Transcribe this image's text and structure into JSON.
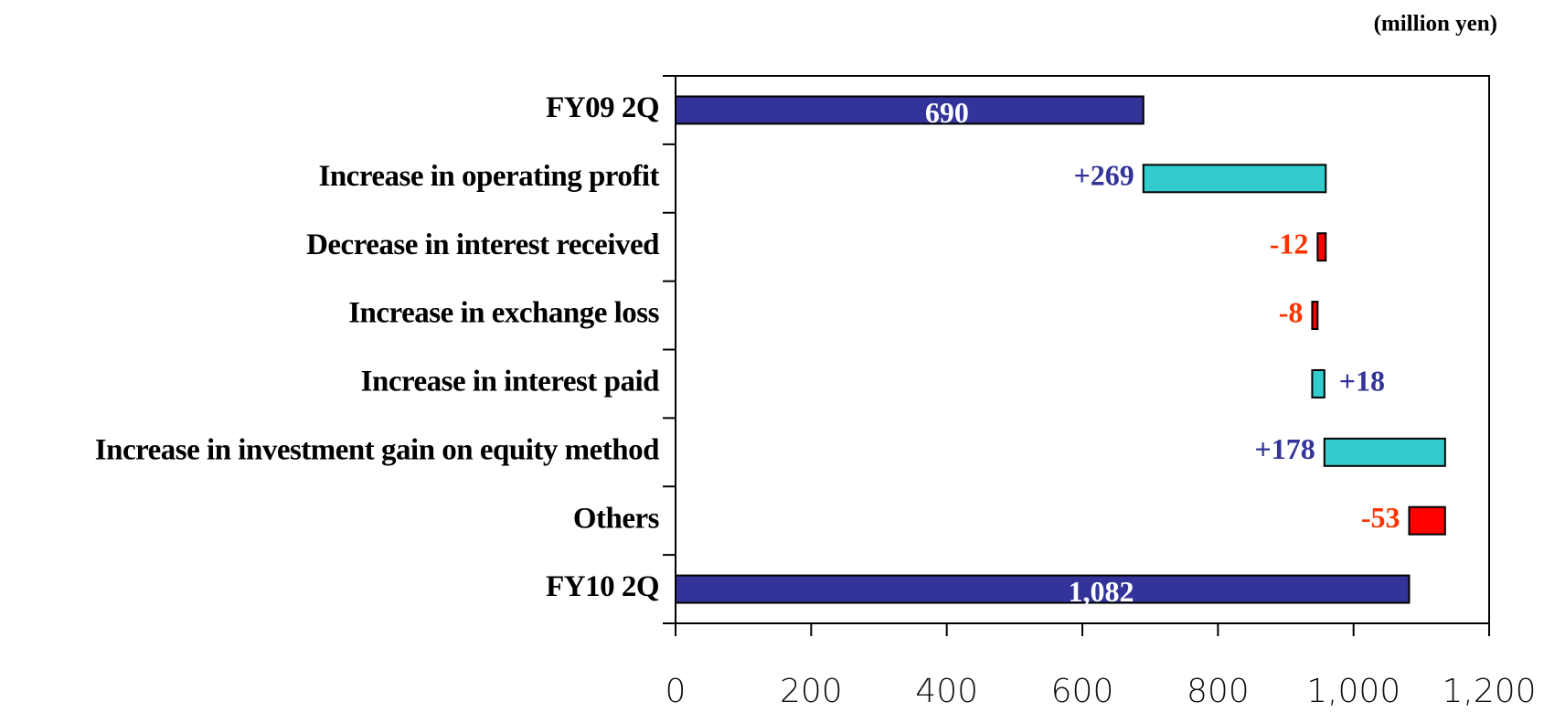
{
  "chart_data": {
    "type": "waterfall",
    "unit_label": "(million yen)",
    "categories": [
      "FY09 2Q",
      "Increase in operating profit",
      "Decrease in interest received",
      "Increase in exchange loss",
      "Increase in interest paid",
      "Increase in investment gain on equity method",
      "Others",
      "FY10 2Q"
    ],
    "values": [
      690,
      269,
      -12,
      -8,
      18,
      178,
      -53,
      1082
    ],
    "value_labels": [
      "690",
      "+269",
      "-12",
      "-8",
      "+18",
      "+178",
      "-53",
      "1,082"
    ],
    "total_color": "#333399",
    "increase_color": "#33cccc",
    "decrease_color": "#ff0000",
    "increase_label_color": "#333399",
    "decrease_label_color": "#ff3300",
    "total_label_color": "#ffffff",
    "xlim": [
      0,
      1200
    ],
    "xticks": [
      0,
      200,
      400,
      600,
      800,
      {
        "value": 1000,
        "label": "1,000"
      },
      {
        "value": 1200,
        "label": "1,200"
      }
    ]
  }
}
